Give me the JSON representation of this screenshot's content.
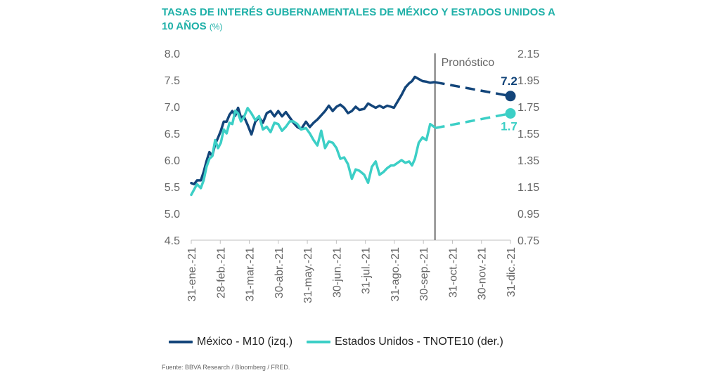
{
  "header": {
    "title": "TASAS DE INTERÉS GUBERNAMENTALES DE MÉXICO Y ESTADOS UNIDOS A 10 AÑOS",
    "unit": "(%)"
  },
  "footer": {
    "source": "Fuente: BBVA Research / Bloomberg / FRED."
  },
  "chart_data": {
    "type": "line",
    "title": "TASAS DE INTERÉS GUBERNAMENTALES DE MÉXICO Y ESTADOS UNIDOS A 10 AÑOS (%)",
    "x_tick_labels": [
      "31-ene.-21",
      "28-feb.-21",
      "31-mar.-21",
      "30-abr.-21",
      "31-may.-21",
      "30-jun.-21",
      "31-jul.-21",
      "31-ago.-21",
      "30-sep.-21",
      "31-oct.-21",
      "30-nov.-21",
      "31-dic.-21"
    ],
    "x_range": [
      "2021-01-31",
      "2021-12-31"
    ],
    "y_left": {
      "ticks": [
        "8.0",
        "7.5",
        "7.0",
        "6.5",
        "6.0",
        "5.5",
        "5.0",
        "4.5"
      ],
      "range": [
        4.5,
        8.0
      ]
    },
    "y_right": {
      "ticks": [
        "2.15",
        "1.95",
        "1.75",
        "1.55",
        "1.35",
        "1.15",
        "0.95",
        "0.75"
      ],
      "range": [
        0.75,
        2.15
      ]
    },
    "forecast_line": {
      "date": "2021-10-13",
      "label": "Pronóstico"
    },
    "legend_position": "bottom",
    "grid": false,
    "series": [
      {
        "name": "México - M10 (izq.)",
        "axis": "left",
        "color": "#13457a",
        "points": [
          [
            "2021-01-31",
            5.57
          ],
          [
            "2021-02-03",
            5.55
          ],
          [
            "2021-02-06",
            5.62
          ],
          [
            "2021-02-10",
            5.62
          ],
          [
            "2021-02-13",
            5.78
          ],
          [
            "2021-02-16",
            5.98
          ],
          [
            "2021-02-19",
            6.15
          ],
          [
            "2021-02-22",
            6.08
          ],
          [
            "2021-02-25",
            6.3
          ],
          [
            "2021-02-28",
            6.42
          ],
          [
            "2021-03-03",
            6.55
          ],
          [
            "2021-03-06",
            6.72
          ],
          [
            "2021-03-09",
            6.72
          ],
          [
            "2021-03-12",
            6.85
          ],
          [
            "2021-03-15",
            6.92
          ],
          [
            "2021-03-18",
            6.83
          ],
          [
            "2021-03-21",
            6.98
          ],
          [
            "2021-03-24",
            6.8
          ],
          [
            "2021-03-27",
            6.82
          ],
          [
            "2021-03-31",
            6.66
          ],
          [
            "2021-04-04",
            6.48
          ],
          [
            "2021-04-08",
            6.72
          ],
          [
            "2021-04-12",
            6.8
          ],
          [
            "2021-04-16",
            6.7
          ],
          [
            "2021-04-20",
            6.88
          ],
          [
            "2021-04-24",
            6.92
          ],
          [
            "2021-04-28",
            6.82
          ],
          [
            "2021-05-02",
            6.92
          ],
          [
            "2021-05-06",
            6.82
          ],
          [
            "2021-05-10",
            6.9
          ],
          [
            "2021-05-14",
            6.8
          ],
          [
            "2021-05-18",
            6.7
          ],
          [
            "2021-05-22",
            6.62
          ],
          [
            "2021-05-26",
            6.58
          ],
          [
            "2021-05-31",
            6.72
          ],
          [
            "2021-06-04",
            6.62
          ],
          [
            "2021-06-08",
            6.7
          ],
          [
            "2021-06-12",
            6.76
          ],
          [
            "2021-06-16",
            6.84
          ],
          [
            "2021-06-20",
            6.92
          ],
          [
            "2021-06-24",
            7.02
          ],
          [
            "2021-06-28",
            6.92
          ],
          [
            "2021-07-02",
            7.0
          ],
          [
            "2021-07-06",
            7.04
          ],
          [
            "2021-07-10",
            6.98
          ],
          [
            "2021-07-14",
            6.88
          ],
          [
            "2021-07-18",
            6.92
          ],
          [
            "2021-07-22",
            7.0
          ],
          [
            "2021-07-26",
            6.94
          ],
          [
            "2021-07-31",
            6.96
          ],
          [
            "2021-08-04",
            7.06
          ],
          [
            "2021-08-08",
            7.02
          ],
          [
            "2021-08-12",
            6.98
          ],
          [
            "2021-08-16",
            7.02
          ],
          [
            "2021-08-20",
            6.98
          ],
          [
            "2021-08-24",
            7.02
          ],
          [
            "2021-08-28",
            7.0
          ],
          [
            "2021-08-31",
            6.98
          ],
          [
            "2021-09-04",
            7.1
          ],
          [
            "2021-09-08",
            7.22
          ],
          [
            "2021-09-12",
            7.36
          ],
          [
            "2021-09-16",
            7.44
          ],
          [
            "2021-09-19",
            7.48
          ],
          [
            "2021-09-22",
            7.56
          ],
          [
            "2021-09-26",
            7.52
          ],
          [
            "2021-09-30",
            7.48
          ],
          [
            "2021-10-04",
            7.47
          ],
          [
            "2021-10-08",
            7.45
          ],
          [
            "2021-10-12",
            7.46
          ]
        ],
        "forecast": [
          [
            "2021-10-13",
            7.46
          ],
          [
            "2021-12-31",
            7.2
          ]
        ],
        "end_label": "7.2"
      },
      {
        "name": "Estados Unidos - TNOTE10 (der.)",
        "axis": "right",
        "color": "#3ccfc6",
        "points": [
          [
            "2021-01-31",
            1.09
          ],
          [
            "2021-02-03",
            1.13
          ],
          [
            "2021-02-06",
            1.17
          ],
          [
            "2021-02-10",
            1.14
          ],
          [
            "2021-02-13",
            1.2
          ],
          [
            "2021-02-16",
            1.3
          ],
          [
            "2021-02-19",
            1.36
          ],
          [
            "2021-02-22",
            1.38
          ],
          [
            "2021-02-25",
            1.5
          ],
          [
            "2021-02-28",
            1.44
          ],
          [
            "2021-03-03",
            1.48
          ],
          [
            "2021-03-06",
            1.58
          ],
          [
            "2021-03-09",
            1.55
          ],
          [
            "2021-03-12",
            1.63
          ],
          [
            "2021-03-15",
            1.62
          ],
          [
            "2021-03-18",
            1.72
          ],
          [
            "2021-03-21",
            1.7
          ],
          [
            "2021-03-24",
            1.64
          ],
          [
            "2021-03-27",
            1.67
          ],
          [
            "2021-03-31",
            1.74
          ],
          [
            "2021-04-04",
            1.7
          ],
          [
            "2021-04-08",
            1.65
          ],
          [
            "2021-04-12",
            1.68
          ],
          [
            "2021-04-16",
            1.58
          ],
          [
            "2021-04-20",
            1.6
          ],
          [
            "2021-04-24",
            1.56
          ],
          [
            "2021-04-28",
            1.63
          ],
          [
            "2021-05-02",
            1.62
          ],
          [
            "2021-05-06",
            1.57
          ],
          [
            "2021-05-10",
            1.6
          ],
          [
            "2021-05-14",
            1.64
          ],
          [
            "2021-05-18",
            1.64
          ],
          [
            "2021-05-22",
            1.62
          ],
          [
            "2021-05-26",
            1.58
          ],
          [
            "2021-05-31",
            1.59
          ],
          [
            "2021-06-04",
            1.55
          ],
          [
            "2021-06-08",
            1.5
          ],
          [
            "2021-06-12",
            1.46
          ],
          [
            "2021-06-16",
            1.57
          ],
          [
            "2021-06-20",
            1.44
          ],
          [
            "2021-06-24",
            1.49
          ],
          [
            "2021-06-28",
            1.48
          ],
          [
            "2021-07-02",
            1.44
          ],
          [
            "2021-07-06",
            1.36
          ],
          [
            "2021-07-10",
            1.37
          ],
          [
            "2021-07-14",
            1.32
          ],
          [
            "2021-07-18",
            1.21
          ],
          [
            "2021-07-22",
            1.28
          ],
          [
            "2021-07-26",
            1.27
          ],
          [
            "2021-07-31",
            1.24
          ],
          [
            "2021-08-04",
            1.18
          ],
          [
            "2021-08-08",
            1.3
          ],
          [
            "2021-08-12",
            1.34
          ],
          [
            "2021-08-16",
            1.24
          ],
          [
            "2021-08-20",
            1.26
          ],
          [
            "2021-08-24",
            1.29
          ],
          [
            "2021-08-28",
            1.31
          ],
          [
            "2021-08-31",
            1.31
          ],
          [
            "2021-09-04",
            1.33
          ],
          [
            "2021-09-08",
            1.35
          ],
          [
            "2021-09-12",
            1.33
          ],
          [
            "2021-09-16",
            1.34
          ],
          [
            "2021-09-19",
            1.31
          ],
          [
            "2021-09-22",
            1.36
          ],
          [
            "2021-09-26",
            1.48
          ],
          [
            "2021-09-30",
            1.52
          ],
          [
            "2021-10-04",
            1.5
          ],
          [
            "2021-10-08",
            1.62
          ],
          [
            "2021-10-12",
            1.6
          ]
        ],
        "forecast": [
          [
            "2021-10-13",
            1.59
          ],
          [
            "2021-12-31",
            1.7
          ]
        ],
        "end_label": "1.7"
      }
    ]
  }
}
